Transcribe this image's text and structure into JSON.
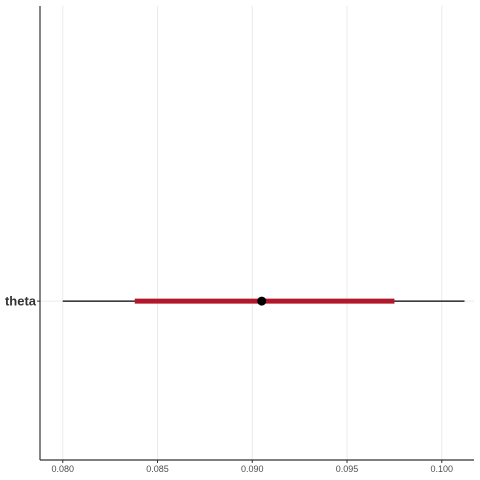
{
  "chart_data": {
    "type": "interval",
    "parameters": [
      "theta"
    ],
    "intervals": [
      {
        "parameter": "theta",
        "point_estimate": 0.0905,
        "inner": [
          0.0838,
          0.0975
        ],
        "outer": [
          0.08,
          0.1012
        ]
      }
    ],
    "x_ticks": [
      0.08,
      0.085,
      0.09,
      0.095,
      0.1
    ],
    "x_tick_labels": [
      "0.080",
      "0.085",
      "0.090",
      "0.095",
      "0.100"
    ],
    "xlim": [
      0.0788,
      0.1017
    ],
    "grid": true,
    "colors": {
      "inner_interval": "#b2182b",
      "outer_interval": "#000000",
      "point": "#000000",
      "grid": "#ebebeb",
      "axis": "#333333"
    }
  }
}
